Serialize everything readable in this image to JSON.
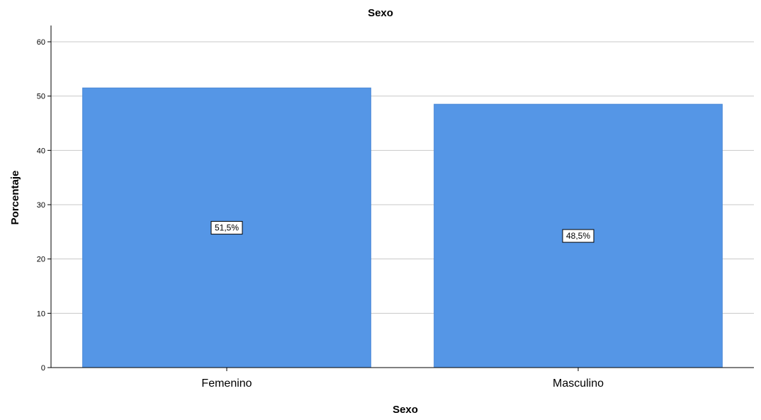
{
  "chart_data": {
    "type": "bar",
    "title": "Sexo",
    "xlabel": "Sexo",
    "ylabel": "Porcentaje",
    "categories": [
      "Femenino",
      "Masculino"
    ],
    "values": [
      51.5,
      48.5
    ],
    "data_labels": [
      "51,5%",
      "48,5%"
    ],
    "ylim": [
      0,
      63
    ],
    "yticks": [
      "0",
      "10",
      "20",
      "30",
      "40",
      "50",
      "60"
    ],
    "grid": true,
    "bar_color": "#5596e6",
    "grid_color": "#c8c8c8"
  }
}
